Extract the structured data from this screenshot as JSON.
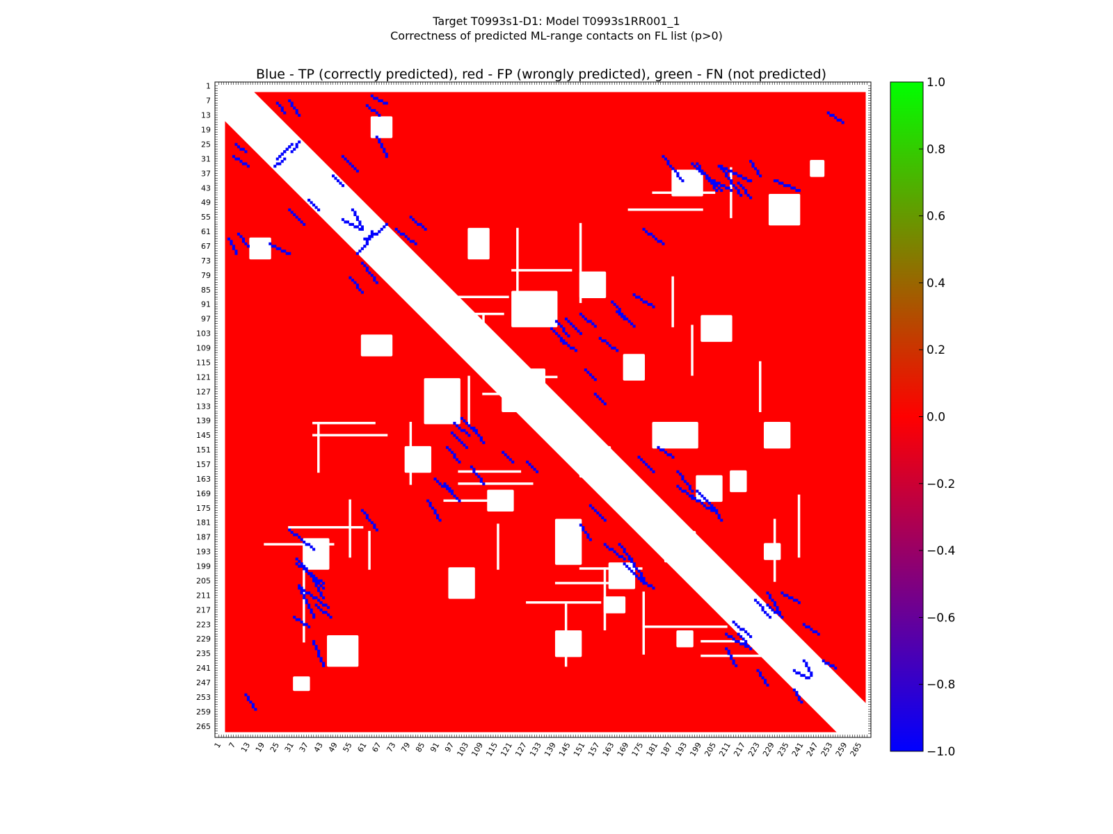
{
  "figure": {
    "title_line1": "Target T0993s1-D1: Model T0993s1RR001_1",
    "title_line2": "Correctness of predicted ML-range contacts on FL list (p>0)"
  },
  "chart_data": {
    "type": "heatmap",
    "title": "Blue - TP (correctly predicted), red - FP (wrongly predicted), green - FN (not predicted)",
    "xlabel": "",
    "ylabel": "",
    "n_residues": 268,
    "x_tick_labels": [
      "1",
      "7",
      "13",
      "19",
      "25",
      "31",
      "37",
      "43",
      "49",
      "55",
      "61",
      "67",
      "73",
      "79",
      "85",
      "91",
      "97",
      "103",
      "109",
      "115",
      "121",
      "127",
      "133",
      "139",
      "145",
      "151",
      "157",
      "163",
      "169",
      "175",
      "181",
      "187",
      "193",
      "199",
      "205",
      "211",
      "217",
      "223",
      "229",
      "235",
      "241",
      "247",
      "253",
      "259",
      "265"
    ],
    "y_tick_labels": [
      "1",
      "7",
      "13",
      "19",
      "25",
      "31",
      "37",
      "43",
      "49",
      "55",
      "61",
      "67",
      "73",
      "79",
      "85",
      "91",
      "97",
      "103",
      "109",
      "115",
      "121",
      "127",
      "133",
      "139",
      "145",
      "151",
      "157",
      "163",
      "169",
      "175",
      "181",
      "187",
      "193",
      "199",
      "205",
      "211",
      "217",
      "223",
      "229",
      "235",
      "241",
      "247",
      "253",
      "259",
      "265"
    ],
    "tick_values": [
      1,
      7,
      13,
      19,
      25,
      31,
      37,
      43,
      49,
      55,
      61,
      67,
      73,
      79,
      85,
      91,
      97,
      103,
      109,
      115,
      121,
      127,
      133,
      139,
      145,
      151,
      157,
      163,
      169,
      175,
      181,
      187,
      193,
      199,
      205,
      211,
      217,
      223,
      229,
      235,
      241,
      247,
      253,
      259,
      265
    ],
    "legend": [
      {
        "label": "TP (correctly predicted)",
        "value": -1.0,
        "color": "#0000ff"
      },
      {
        "label": "FP (wrongly predicted)",
        "value": 0.0,
        "color": "#ff0000"
      },
      {
        "label": "FN (not predicted)",
        "value": 1.0,
        "color": "#00ff00"
      }
    ],
    "colorbar": {
      "range": [
        -1.0,
        1.0
      ],
      "tick_labels": [
        "1.0",
        "0.8",
        "0.6",
        "0.4",
        "0.2",
        "0.0",
        "−0.2",
        "−0.4",
        "−0.6",
        "−0.8",
        "−1.0"
      ],
      "tick_values": [
        1.0,
        0.8,
        0.6,
        0.4,
        0.2,
        0.0,
        -0.2,
        -0.4,
        -0.6,
        -0.8,
        -1.0
      ],
      "colors": [
        "#00ff00",
        "#ff0000",
        "#0000ff"
      ]
    },
    "excluded_diagonal_band_width": 12,
    "background_fill": "FP",
    "white_blocks_no_prediction": [
      [
        118,
        135,
        118,
        135
      ],
      [
        150,
        162,
        150,
        162
      ],
      [
        185,
        197,
        185,
        197
      ],
      [
        212,
        222,
        212,
        222
      ],
      [
        140,
        150,
        180,
        198
      ],
      [
        180,
        198,
        140,
        150
      ],
      [
        162,
        172,
        198,
        208
      ],
      [
        198,
        208,
        162,
        172
      ],
      [
        46,
        58,
        228,
        240
      ],
      [
        228,
        240,
        46,
        58
      ],
      [
        32,
        38,
        245,
        250
      ],
      [
        245,
        250,
        32,
        38
      ],
      [
        96,
        106,
        200,
        212
      ],
      [
        200,
        212,
        96,
        106
      ],
      [
        140,
        150,
        226,
        236
      ],
      [
        226,
        236,
        140,
        150
      ],
      [
        168,
        176,
        112,
        122
      ],
      [
        112,
        122,
        168,
        176
      ],
      [
        36,
        46,
        188,
        200
      ],
      [
        188,
        200,
        36,
        46
      ],
      [
        226,
        232,
        190,
        196
      ],
      [
        190,
        196,
        226,
        232
      ],
      [
        64,
        72,
        14,
        22
      ],
      [
        14,
        22,
        64,
        72
      ],
      [
        212,
        218,
        160,
        168
      ],
      [
        160,
        168,
        212,
        218
      ],
      [
        86,
        100,
        122,
        140
      ],
      [
        122,
        140,
        86,
        100
      ],
      [
        104,
        112,
        60,
        72
      ],
      [
        60,
        72,
        104,
        112
      ],
      [
        78,
        88,
        150,
        160
      ],
      [
        150,
        160,
        78,
        88
      ]
    ],
    "white_lines_horizontal": [
      [
        121,
        110,
        140
      ],
      [
        128,
        110,
        138
      ],
      [
        200,
        150,
        175
      ],
      [
        206,
        140,
        170
      ],
      [
        214,
        128,
        158
      ],
      [
        88,
        100,
        120
      ],
      [
        95,
        96,
        118
      ],
      [
        183,
        30,
        60
      ],
      [
        190,
        20,
        48
      ],
      [
        224,
        176,
        210
      ],
      [
        230,
        200,
        240
      ],
      [
        236,
        200,
        236
      ],
      [
        52,
        170,
        200
      ],
      [
        45,
        180,
        205
      ],
      [
        77,
        122,
        146
      ],
      [
        140,
        40,
        65
      ],
      [
        145,
        40,
        70
      ],
      [
        165,
        100,
        130
      ],
      [
        172,
        94,
        120
      ],
      [
        160,
        100,
        125
      ]
    ],
    "white_lines_vertical": [
      [
        104,
        121,
        140
      ],
      [
        110,
        95,
        120
      ],
      [
        124,
        60,
        90
      ],
      [
        150,
        58,
        90
      ],
      [
        212,
        35,
        55
      ],
      [
        224,
        115,
        135
      ],
      [
        230,
        180,
        205
      ],
      [
        240,
        170,
        195
      ],
      [
        188,
        80,
        100
      ],
      [
        196,
        100,
        120
      ],
      [
        55,
        172,
        195
      ],
      [
        63,
        185,
        200
      ],
      [
        80,
        140,
        165
      ],
      [
        160,
        200,
        225
      ],
      [
        176,
        210,
        235
      ],
      [
        42,
        140,
        160
      ],
      [
        36,
        200,
        230
      ],
      [
        116,
        182,
        200
      ],
      [
        144,
        215,
        240
      ]
    ],
    "tp_segments": [
      [
        26,
        31,
        30,
        25
      ],
      [
        31,
        34,
        28,
        24
      ],
      [
        61,
        67,
        64,
        61
      ],
      [
        66,
        70,
        62,
        58
      ],
      [
        13,
        7,
        34,
        30
      ],
      [
        12,
        8,
        28,
        25
      ],
      [
        8,
        5,
        70,
        64
      ],
      [
        13,
        9,
        67,
        62
      ],
      [
        30,
        40,
        184,
        192
      ],
      [
        33,
        44,
        198,
        206
      ],
      [
        34,
        40,
        207,
        212
      ],
      [
        38,
        46,
        210,
        216
      ],
      [
        87,
        92,
        172,
        180
      ],
      [
        36,
        44,
        200,
        208
      ],
      [
        41,
        47,
        215,
        220
      ],
      [
        220,
        224,
        32,
        38
      ],
      [
        196,
        204,
        33,
        40
      ],
      [
        205,
        212,
        40,
        44
      ],
      [
        163,
        168,
        90,
        96
      ],
      [
        165,
        172,
        94,
        100
      ],
      [
        140,
        145,
        98,
        104
      ],
      [
        144,
        150,
        97,
        103
      ],
      [
        150,
        156,
        95,
        100
      ],
      [
        158,
        165,
        105,
        110
      ],
      [
        198,
        206,
        168,
        176
      ],
      [
        202,
        208,
        172,
        180
      ],
      [
        101,
        106,
        138,
        143
      ],
      [
        106,
        110,
        142,
        148
      ],
      [
        118,
        122,
        152,
        156
      ],
      [
        128,
        132,
        156,
        160
      ],
      [
        210,
        218,
        227,
        232
      ],
      [
        213,
        220,
        222,
        228
      ],
      [
        227,
        233,
        215,
        220
      ],
      [
        233,
        240,
        210,
        214
      ],
      [
        242,
        248,
        223,
        227
      ],
      [
        238,
        244,
        242,
        245
      ],
      [
        250,
        255,
        238,
        241
      ],
      [
        166,
        172,
        190,
        198
      ],
      [
        170,
        176,
        196,
        204
      ],
      [
        40,
        44,
        230,
        240
      ],
      [
        34,
        40,
        208,
        220
      ],
      [
        48,
        52,
        38,
        42
      ],
      [
        52,
        58,
        30,
        36
      ],
      [
        56,
        60,
        52,
        60
      ],
      [
        60,
        66,
        176,
        184
      ],
      [
        74,
        82,
        60,
        66
      ],
      [
        80,
        86,
        55,
        60
      ],
      [
        190,
        196,
        160,
        168
      ],
      [
        174,
        180,
        154,
        160
      ],
      [
        182,
        188,
        150,
        154
      ],
      [
        66,
        70,
        22,
        30
      ],
      [
        12,
        16,
        252,
        258
      ]
    ]
  }
}
